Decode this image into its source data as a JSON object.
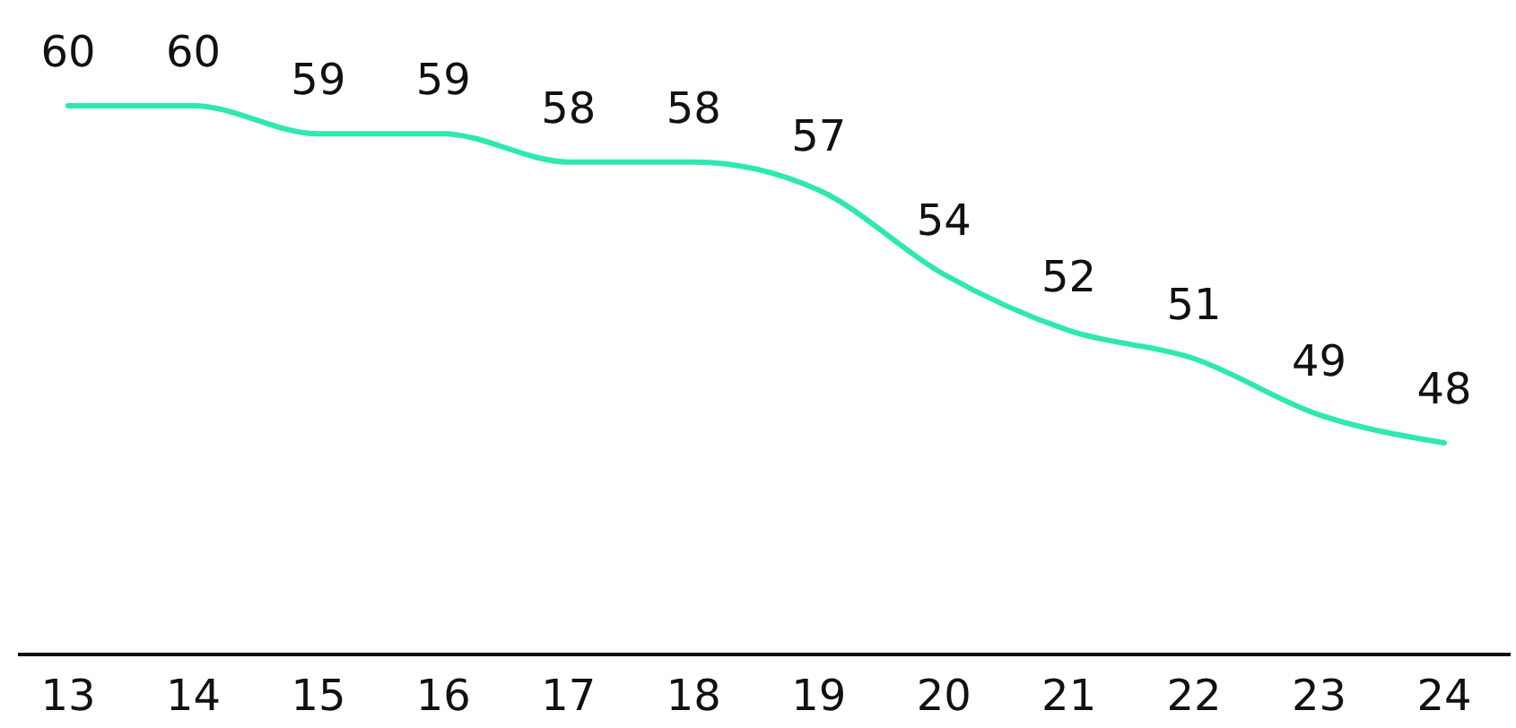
{
  "chart_data": {
    "type": "line",
    "categories": [
      "13",
      "14",
      "15",
      "16",
      "17",
      "18",
      "19",
      "20",
      "21",
      "22",
      "23",
      "24"
    ],
    "series": [
      {
        "color": "#2ee8b0",
        "values": [
          60,
          60,
          59,
          59,
          58,
          58,
          57,
          54,
          52,
          51,
          49,
          48
        ]
      }
    ],
    "data_labels": true,
    "tick_labels": "x",
    "line_style": "solid"
  }
}
